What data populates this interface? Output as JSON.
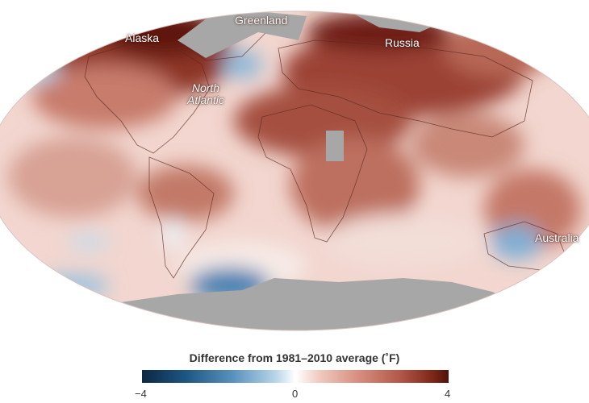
{
  "map": {
    "labels": {
      "alaska": "Alaska",
      "greenland": "Greenland",
      "russia": "Russia",
      "north_atlantic_line1": "North",
      "north_atlantic_line2": "Atlantic",
      "australia": "Australia"
    },
    "colors": {
      "no_data": "#a7a7a7",
      "neutral": "#faf1ee",
      "warm": "#b45a4b",
      "hot": "#6b1d12",
      "cool": "#8fb9d8",
      "cold": "#2f6d9f",
      "land_outline": "#5b2a22"
    }
  },
  "legend": {
    "title": "Difference from 1981–2010 average (˚F)",
    "min_label": "−4",
    "mid_label": "0",
    "max_label": "4",
    "range": [
      -4,
      4
    ],
    "colormap": [
      "#0c2742",
      "#1d5582",
      "#5b93bf",
      "#bcd7ea",
      "#ffffff",
      "#f0c9c0",
      "#d99082",
      "#b4584a",
      "#7c2617",
      "#4e130b"
    ]
  }
}
